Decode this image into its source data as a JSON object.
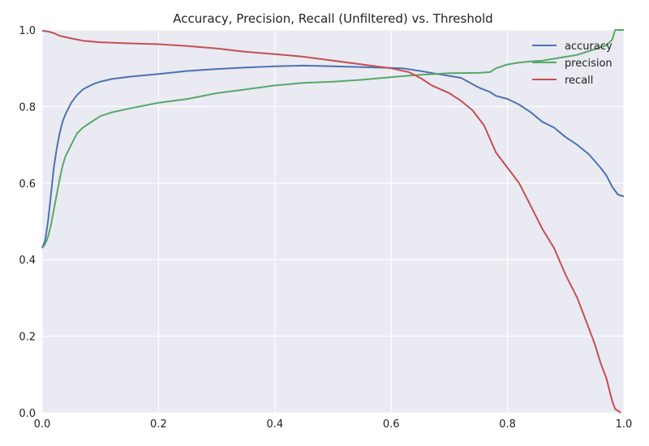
{
  "chart_data": {
    "type": "line",
    "title": "Accuracy, Precision, Recall (Unfiltered) vs. Threshold",
    "xlabel": "",
    "ylabel": "",
    "xlim": [
      0.0,
      1.0
    ],
    "ylim": [
      0.0,
      1.0
    ],
    "x_ticks": [
      "0.0",
      "0.2",
      "0.4",
      "0.6",
      "0.8",
      "1.0"
    ],
    "y_ticks": [
      "0.0",
      "0.2",
      "0.4",
      "0.6",
      "0.8",
      "1.0"
    ],
    "grid": true,
    "legend_position": "top-right",
    "colors": {
      "background": "#eaeaf2",
      "grid": "#ffffff"
    },
    "series": [
      {
        "name": "accuracy",
        "color": "#4c72b0",
        "x": [
          0.0,
          0.005,
          0.01,
          0.015,
          0.02,
          0.025,
          0.03,
          0.035,
          0.04,
          0.05,
          0.06,
          0.07,
          0.08,
          0.09,
          0.1,
          0.12,
          0.15,
          0.2,
          0.25,
          0.3,
          0.35,
          0.4,
          0.45,
          0.5,
          0.55,
          0.6,
          0.62,
          0.65,
          0.68,
          0.7,
          0.72,
          0.75,
          0.77,
          0.78,
          0.8,
          0.82,
          0.84,
          0.86,
          0.88,
          0.9,
          0.92,
          0.94,
          0.96,
          0.97,
          0.98,
          0.99,
          1.0
        ],
        "y": [
          0.43,
          0.45,
          0.5,
          0.57,
          0.64,
          0.69,
          0.73,
          0.76,
          0.78,
          0.81,
          0.83,
          0.845,
          0.853,
          0.86,
          0.865,
          0.872,
          0.878,
          0.885,
          0.893,
          0.898,
          0.902,
          0.905,
          0.907,
          0.905,
          0.903,
          0.901,
          0.9,
          0.893,
          0.885,
          0.88,
          0.875,
          0.85,
          0.838,
          0.828,
          0.82,
          0.805,
          0.785,
          0.76,
          0.745,
          0.72,
          0.7,
          0.675,
          0.64,
          0.62,
          0.59,
          0.57,
          0.565
        ]
      },
      {
        "name": "precision",
        "color": "#55a868",
        "x": [
          0.0,
          0.005,
          0.01,
          0.015,
          0.02,
          0.025,
          0.03,
          0.035,
          0.04,
          0.05,
          0.06,
          0.07,
          0.08,
          0.09,
          0.1,
          0.12,
          0.15,
          0.2,
          0.25,
          0.3,
          0.35,
          0.4,
          0.45,
          0.5,
          0.55,
          0.6,
          0.65,
          0.7,
          0.75,
          0.77,
          0.78,
          0.8,
          0.82,
          0.84,
          0.86,
          0.88,
          0.9,
          0.92,
          0.94,
          0.96,
          0.97,
          0.98,
          0.985,
          1.0
        ],
        "y": [
          0.43,
          0.44,
          0.46,
          0.49,
          0.53,
          0.57,
          0.61,
          0.645,
          0.67,
          0.7,
          0.73,
          0.745,
          0.755,
          0.765,
          0.775,
          0.785,
          0.795,
          0.81,
          0.82,
          0.835,
          0.845,
          0.855,
          0.862,
          0.865,
          0.87,
          0.877,
          0.883,
          0.887,
          0.888,
          0.89,
          0.9,
          0.91,
          0.915,
          0.918,
          0.92,
          0.925,
          0.93,
          0.935,
          0.945,
          0.955,
          0.96,
          0.975,
          1.0,
          1.0
        ]
      },
      {
        "name": "recall",
        "color": "#c44e52",
        "x": [
          0.0,
          0.01,
          0.02,
          0.03,
          0.05,
          0.07,
          0.1,
          0.15,
          0.2,
          0.25,
          0.3,
          0.35,
          0.4,
          0.45,
          0.5,
          0.55,
          0.6,
          0.63,
          0.65,
          0.67,
          0.7,
          0.72,
          0.74,
          0.76,
          0.78,
          0.8,
          0.82,
          0.84,
          0.86,
          0.88,
          0.9,
          0.92,
          0.94,
          0.95,
          0.96,
          0.97,
          0.975,
          0.98,
          0.985,
          0.99,
          0.995
        ],
        "y": [
          0.998,
          0.996,
          0.992,
          0.985,
          0.978,
          0.972,
          0.968,
          0.965,
          0.963,
          0.958,
          0.952,
          0.943,
          0.937,
          0.93,
          0.92,
          0.91,
          0.9,
          0.89,
          0.875,
          0.855,
          0.835,
          0.815,
          0.79,
          0.75,
          0.68,
          0.64,
          0.6,
          0.54,
          0.48,
          0.43,
          0.36,
          0.3,
          0.22,
          0.18,
          0.13,
          0.09,
          0.06,
          0.03,
          0.01,
          0.005,
          0.0
        ]
      }
    ]
  }
}
